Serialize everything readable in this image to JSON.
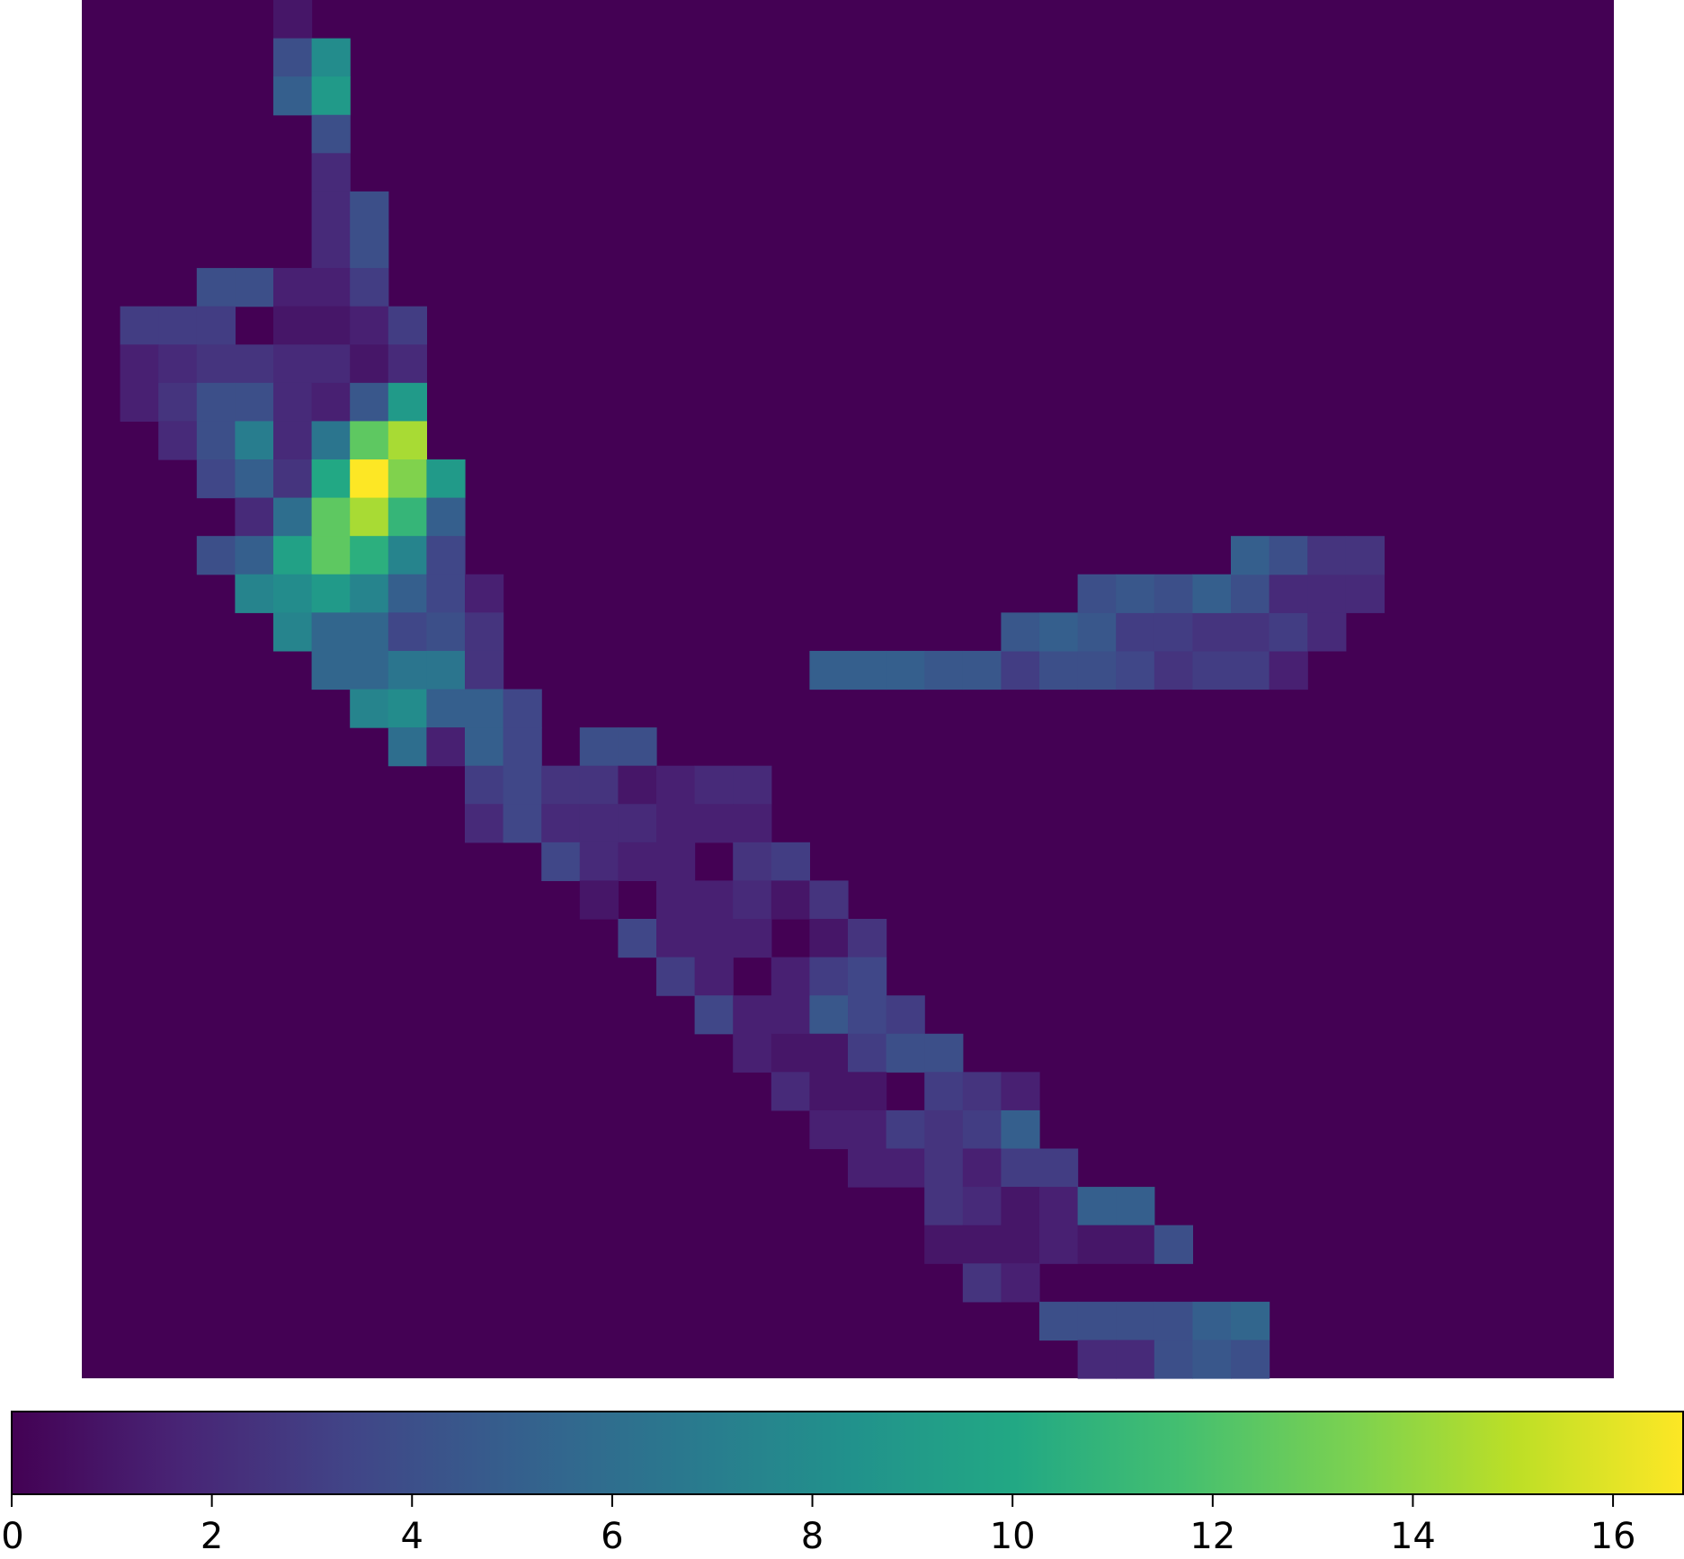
{
  "chart_data": {
    "type": "heatmap",
    "colormap": "viridis",
    "rows": 36,
    "cols": 40,
    "value_range": [
      0,
      16.7
    ],
    "colorbar": {
      "orientation": "horizontal",
      "placement": "bottom",
      "ticks": [
        0,
        2,
        4,
        6,
        8,
        10,
        12,
        14,
        16
      ],
      "tick_labels": [
        "0",
        "2",
        "4",
        "6",
        "8",
        "10",
        "12",
        "14",
        "16"
      ]
    },
    "cells": [
      [
        0,
        5,
        1.0
      ],
      [
        1,
        5,
        4.0
      ],
      [
        1,
        6,
        8.0
      ],
      [
        2,
        5,
        5.0
      ],
      [
        2,
        6,
        9.0
      ],
      [
        3,
        6,
        4.0
      ],
      [
        4,
        6,
        2.0
      ],
      [
        5,
        6,
        2.0
      ],
      [
        5,
        7,
        4.0
      ],
      [
        6,
        6,
        2.0
      ],
      [
        6,
        7,
        4.0
      ],
      [
        7,
        3,
        4.0
      ],
      [
        7,
        4,
        4.0
      ],
      [
        7,
        5,
        1.5
      ],
      [
        7,
        6,
        1.5
      ],
      [
        7,
        7,
        3.0
      ],
      [
        8,
        1,
        3.0
      ],
      [
        8,
        2,
        3.0
      ],
      [
        8,
        3,
        3.0
      ],
      [
        8,
        5,
        1.0
      ],
      [
        8,
        6,
        1.0
      ],
      [
        8,
        7,
        1.5
      ],
      [
        8,
        8,
        3.0
      ],
      [
        9,
        1,
        1.5
      ],
      [
        9,
        2,
        2.0
      ],
      [
        9,
        3,
        2.5
      ],
      [
        9,
        4,
        2.5
      ],
      [
        9,
        5,
        2.0
      ],
      [
        9,
        6,
        2.0
      ],
      [
        9,
        7,
        1.0
      ],
      [
        9,
        8,
        2.0
      ],
      [
        10,
        1,
        1.5
      ],
      [
        10,
        2,
        2.5
      ],
      [
        10,
        3,
        4.0
      ],
      [
        10,
        4,
        4.0
      ],
      [
        10,
        5,
        2.0
      ],
      [
        10,
        6,
        1.5
      ],
      [
        10,
        7,
        4.5
      ],
      [
        10,
        8,
        9.0
      ],
      [
        11,
        2,
        2.0
      ],
      [
        11,
        3,
        4.0
      ],
      [
        11,
        4,
        7.0
      ],
      [
        11,
        5,
        2.0
      ],
      [
        11,
        6,
        6.5
      ],
      [
        11,
        7,
        12.5
      ],
      [
        11,
        8,
        14.5
      ],
      [
        12,
        3,
        3.5
      ],
      [
        12,
        4,
        5.0
      ],
      [
        12,
        5,
        2.5
      ],
      [
        12,
        6,
        10.0
      ],
      [
        12,
        7,
        16.7
      ],
      [
        12,
        8,
        13.5
      ],
      [
        12,
        9,
        9.0
      ],
      [
        13,
        4,
        2.0
      ],
      [
        13,
        5,
        6.0
      ],
      [
        13,
        6,
        12.5
      ],
      [
        13,
        7,
        14.5
      ],
      [
        13,
        8,
        11.0
      ],
      [
        13,
        9,
        5.0
      ],
      [
        14,
        3,
        4.0
      ],
      [
        14,
        4,
        5.0
      ],
      [
        14,
        5,
        9.5
      ],
      [
        14,
        6,
        12.5
      ],
      [
        14,
        7,
        10.5
      ],
      [
        14,
        8,
        7.5
      ],
      [
        14,
        9,
        3.5
      ],
      [
        15,
        4,
        7.5
      ],
      [
        15,
        5,
        8.0
      ],
      [
        15,
        6,
        9.0
      ],
      [
        15,
        7,
        7.5
      ],
      [
        15,
        8,
        5.0
      ],
      [
        15,
        9,
        3.5
      ],
      [
        15,
        10,
        1.5
      ],
      [
        16,
        5,
        7.5
      ],
      [
        16,
        6,
        5.5
      ],
      [
        16,
        7,
        5.5
      ],
      [
        16,
        8,
        3.5
      ],
      [
        16,
        9,
        4.0
      ],
      [
        16,
        10,
        2.5
      ],
      [
        17,
        6,
        5.5
      ],
      [
        17,
        7,
        5.5
      ],
      [
        17,
        8,
        6.5
      ],
      [
        17,
        9,
        6.5
      ],
      [
        17,
        10,
        2.5
      ],
      [
        18,
        7,
        7.5
      ],
      [
        18,
        8,
        8.0
      ],
      [
        18,
        9,
        5.0
      ],
      [
        18,
        10,
        5.0
      ],
      [
        18,
        11,
        3.5
      ],
      [
        19,
        8,
        6.0
      ],
      [
        19,
        9,
        1.5
      ],
      [
        19,
        10,
        5.0
      ],
      [
        19,
        11,
        3.5
      ],
      [
        19,
        13,
        4.0
      ],
      [
        19,
        14,
        4.0
      ],
      [
        20,
        10,
        3.0
      ],
      [
        20,
        11,
        3.5
      ],
      [
        20,
        12,
        2.5
      ],
      [
        20,
        13,
        2.5
      ],
      [
        20,
        14,
        1.0
      ],
      [
        20,
        15,
        1.5
      ],
      [
        20,
        16,
        2.0
      ],
      [
        20,
        17,
        2.0
      ],
      [
        21,
        10,
        2.0
      ],
      [
        21,
        11,
        3.5
      ],
      [
        21,
        12,
        2.0
      ],
      [
        21,
        13,
        2.0
      ],
      [
        21,
        14,
        2.0
      ],
      [
        21,
        15,
        1.5
      ],
      [
        21,
        16,
        1.5
      ],
      [
        21,
        17,
        1.5
      ],
      [
        22,
        12,
        3.5
      ],
      [
        22,
        13,
        2.0
      ],
      [
        22,
        14,
        1.5
      ],
      [
        22,
        15,
        1.5
      ],
      [
        22,
        17,
        2.5
      ],
      [
        22,
        18,
        3.0
      ],
      [
        23,
        13,
        1.0
      ],
      [
        23,
        15,
        1.5
      ],
      [
        23,
        16,
        1.5
      ],
      [
        23,
        17,
        2.0
      ],
      [
        23,
        18,
        1.0
      ],
      [
        23,
        19,
        2.5
      ],
      [
        24,
        14,
        3.5
      ],
      [
        24,
        15,
        1.5
      ],
      [
        24,
        16,
        1.5
      ],
      [
        24,
        17,
        1.5
      ],
      [
        24,
        19,
        1.0
      ],
      [
        24,
        20,
        2.5
      ],
      [
        25,
        15,
        3.0
      ],
      [
        25,
        16,
        1.5
      ],
      [
        25,
        18,
        1.5
      ],
      [
        25,
        19,
        3.0
      ],
      [
        25,
        20,
        3.5
      ],
      [
        26,
        16,
        3.5
      ],
      [
        26,
        17,
        1.5
      ],
      [
        26,
        18,
        1.5
      ],
      [
        26,
        19,
        4.5
      ],
      [
        26,
        20,
        3.5
      ],
      [
        26,
        21,
        3.0
      ],
      [
        27,
        17,
        1.5
      ],
      [
        27,
        18,
        1.0
      ],
      [
        27,
        19,
        1.0
      ],
      [
        27,
        20,
        3.0
      ],
      [
        27,
        21,
        4.0
      ],
      [
        27,
        22,
        4.0
      ],
      [
        28,
        18,
        2.0
      ],
      [
        28,
        19,
        1.0
      ],
      [
        28,
        20,
        1.0
      ],
      [
        28,
        22,
        3.0
      ],
      [
        28,
        23,
        2.5
      ],
      [
        28,
        24,
        1.5
      ],
      [
        29,
        19,
        1.5
      ],
      [
        29,
        20,
        1.5
      ],
      [
        29,
        21,
        3.0
      ],
      [
        29,
        22,
        2.5
      ],
      [
        29,
        23,
        3.0
      ],
      [
        29,
        24,
        5.0
      ],
      [
        30,
        20,
        1.5
      ],
      [
        30,
        21,
        1.5
      ],
      [
        30,
        22,
        2.5
      ],
      [
        30,
        23,
        1.5
      ],
      [
        30,
        24,
        3.0
      ],
      [
        30,
        25,
        3.0
      ],
      [
        31,
        22,
        2.5
      ],
      [
        31,
        23,
        2.0
      ],
      [
        31,
        24,
        1.0
      ],
      [
        31,
        25,
        1.5
      ],
      [
        31,
        26,
        5.0
      ],
      [
        31,
        27,
        5.0
      ],
      [
        32,
        22,
        1.0
      ],
      [
        32,
        23,
        1.0
      ],
      [
        32,
        24,
        1.0
      ],
      [
        32,
        25,
        1.5
      ],
      [
        32,
        26,
        1.0
      ],
      [
        32,
        27,
        1.0
      ],
      [
        32,
        28,
        4.0
      ],
      [
        33,
        23,
        2.5
      ],
      [
        33,
        24,
        1.5
      ],
      [
        34,
        25,
        4.0
      ],
      [
        34,
        26,
        4.0
      ],
      [
        34,
        27,
        4.0
      ],
      [
        34,
        28,
        4.0
      ],
      [
        34,
        29,
        5.0
      ],
      [
        34,
        30,
        5.5
      ],
      [
        35,
        26,
        2.0
      ],
      [
        35,
        27,
        2.0
      ],
      [
        35,
        28,
        4.0
      ],
      [
        35,
        29,
        4.5
      ],
      [
        35,
        30,
        4.0
      ],
      [
        17,
        19,
        5.0
      ],
      [
        17,
        20,
        5.0
      ],
      [
        17,
        21,
        5.0
      ],
      [
        17,
        22,
        4.5
      ],
      [
        17,
        23,
        4.5
      ],
      [
        17,
        24,
        3.0
      ],
      [
        17,
        25,
        4.0
      ],
      [
        17,
        26,
        4.0
      ],
      [
        17,
        27,
        3.5
      ],
      [
        17,
        28,
        2.5
      ],
      [
        17,
        29,
        3.0
      ],
      [
        17,
        30,
        3.0
      ],
      [
        17,
        31,
        1.5
      ],
      [
        16,
        24,
        4.5
      ],
      [
        16,
        25,
        5.0
      ],
      [
        16,
        26,
        4.5
      ],
      [
        16,
        27,
        3.0
      ],
      [
        16,
        28,
        3.0
      ],
      [
        16,
        29,
        2.5
      ],
      [
        16,
        30,
        2.5
      ],
      [
        16,
        31,
        3.0
      ],
      [
        16,
        32,
        2.0
      ],
      [
        15,
        26,
        4.0
      ],
      [
        15,
        27,
        4.5
      ],
      [
        15,
        28,
        4.0
      ],
      [
        15,
        29,
        5.0
      ],
      [
        15,
        30,
        4.0
      ],
      [
        15,
        31,
        2.0
      ],
      [
        15,
        32,
        2.0
      ],
      [
        15,
        33,
        2.0
      ],
      [
        14,
        30,
        5.0
      ],
      [
        14,
        31,
        4.0
      ],
      [
        14,
        32,
        2.5
      ],
      [
        14,
        33,
        2.5
      ]
    ]
  }
}
